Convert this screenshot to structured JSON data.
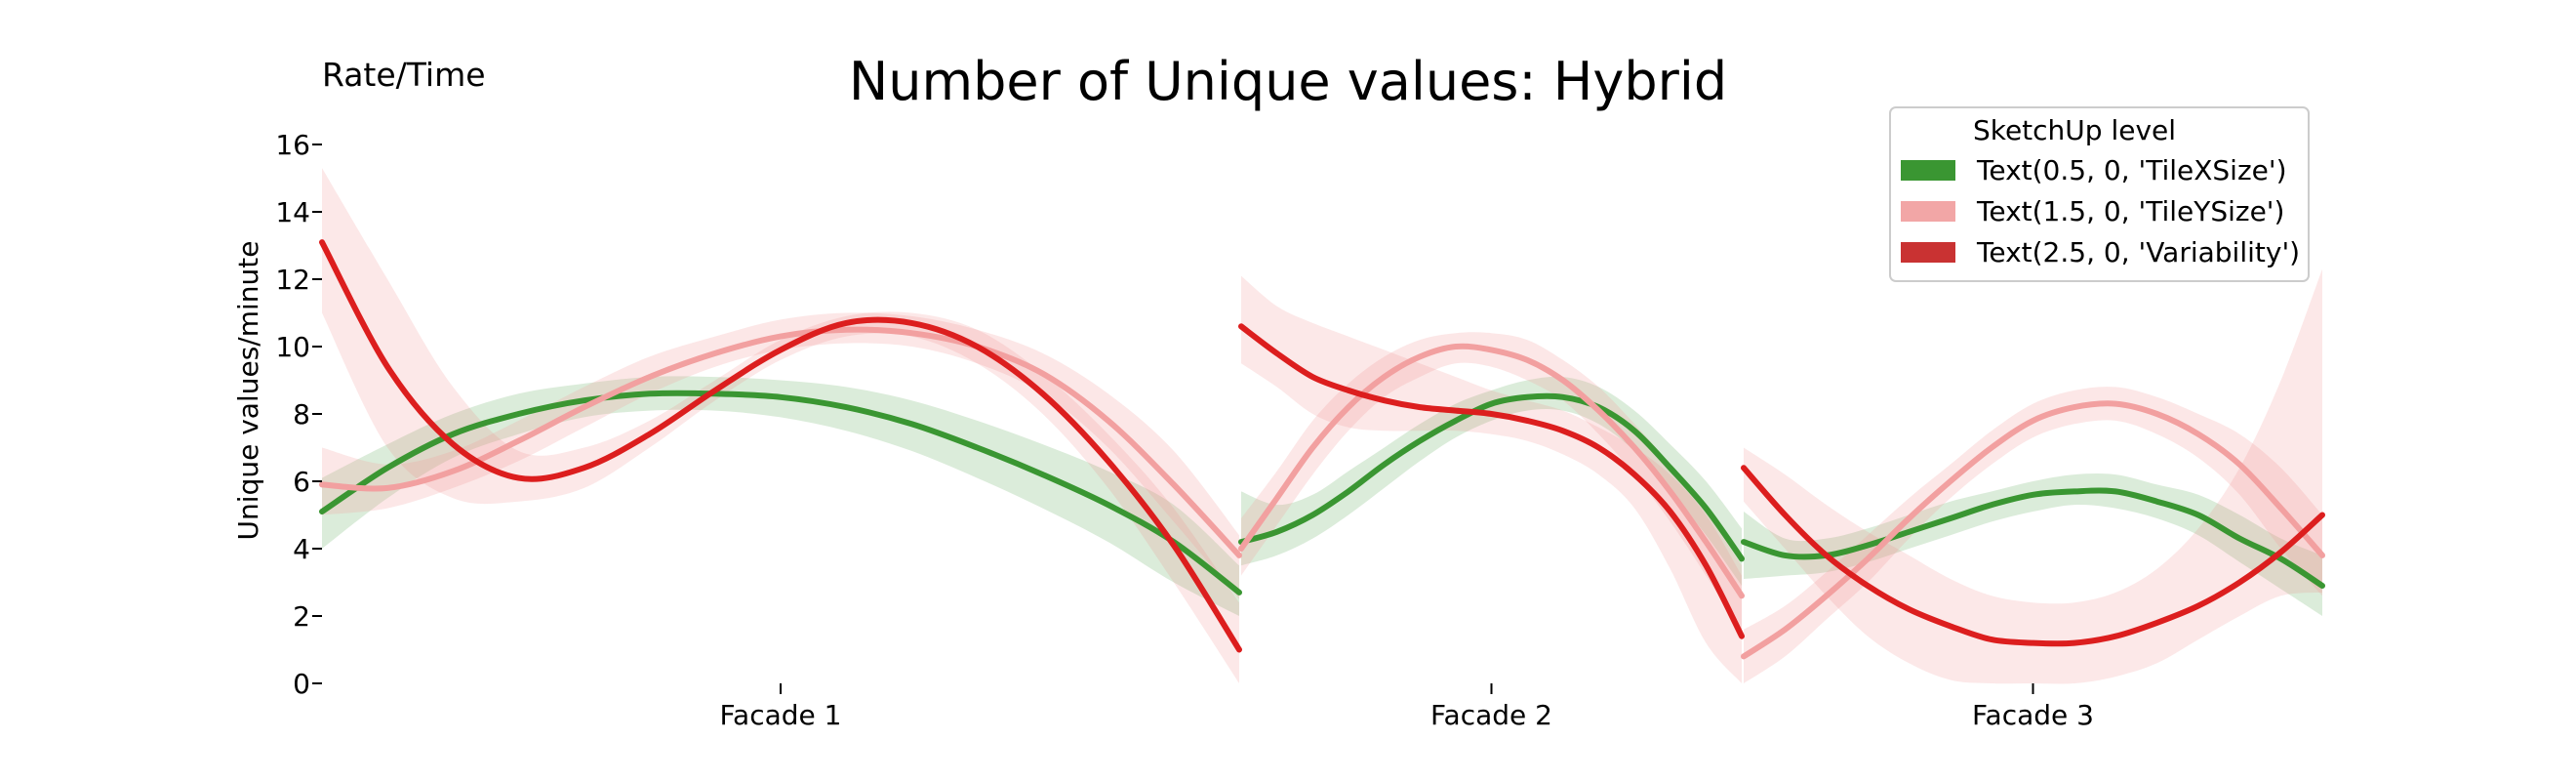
{
  "chart_data": {
    "type": "line",
    "title": "Number of Unique values: Hybrid",
    "corner_label": "Rate/Time",
    "ylabel": "Unique values/minute",
    "xlabel": "",
    "ylim": [
      0,
      16
    ],
    "yticks": [
      0,
      2,
      4,
      6,
      8,
      10,
      12,
      14,
      16
    ],
    "grid": false,
    "legend": {
      "title": "SketchUp level",
      "placement": "top-right",
      "entries": [
        {
          "label": "Text(0.5, 0, 'TileXSize')",
          "color": "#3a9632"
        },
        {
          "label": "Text(1.5, 0, 'TileYSize')",
          "color": "#f2a6a6"
        },
        {
          "label": "Text(2.5, 0, 'Variability')",
          "color": "#c93232"
        }
      ]
    },
    "panels": [
      {
        "label": "Facade 1",
        "series": [
          {
            "name": "Text(0.5, 0, 'TileXSize')",
            "color": "#3a9632",
            "band_color": "#3a9632",
            "values": [
              5.1,
              6.4,
              7.4,
              8.0,
              8.4,
              8.6,
              8.6,
              8.5,
              8.2,
              7.7,
              7.0,
              6.2,
              5.3,
              4.2,
              2.7
            ],
            "lower": [
              4.0,
              5.5,
              6.7,
              7.4,
              7.9,
              8.1,
              8.1,
              7.9,
              7.5,
              6.9,
              6.1,
              5.2,
              4.2,
              3.0,
              2.0
            ],
            "upper": [
              6.1,
              7.1,
              8.0,
              8.6,
              8.9,
              9.1,
              9.1,
              9.0,
              8.8,
              8.4,
              7.8,
              7.1,
              6.3,
              5.3,
              3.5
            ]
          },
          {
            "name": "Text(1.5, 0, 'TileYSize')",
            "color": "#f2a0a0",
            "band_color": "#f2a0a0",
            "values": [
              5.9,
              5.8,
              6.3,
              7.2,
              8.2,
              9.1,
              9.8,
              10.3,
              10.5,
              10.4,
              10.0,
              9.2,
              7.8,
              5.9,
              3.8
            ],
            "lower": [
              5.0,
              5.2,
              5.8,
              6.6,
              7.6,
              8.6,
              9.4,
              9.9,
              10.1,
              10.0,
              9.5,
              8.6,
              7.0,
              4.8,
              2.5
            ],
            "upper": [
              7.0,
              6.5,
              6.9,
              7.8,
              8.8,
              9.7,
              10.3,
              10.8,
              11.0,
              10.9,
              10.5,
              9.8,
              8.6,
              6.9,
              4.4
            ]
          },
          {
            "name": "Text(2.5, 0, 'Variability')",
            "color": "#dc1e1e",
            "band_color": "#f08080",
            "values": [
              13.1,
              9.4,
              7.1,
              6.1,
              6.4,
              7.4,
              8.7,
              9.9,
              10.7,
              10.7,
              10.0,
              8.6,
              6.6,
              4.1,
              1.0
            ],
            "lower": [
              11.0,
              7.0,
              5.5,
              5.4,
              5.8,
              7.0,
              8.4,
              9.6,
              10.3,
              10.3,
              9.5,
              8.0,
              5.8,
              3.0,
              0.0
            ],
            "upper": [
              15.3,
              12.0,
              8.8,
              6.9,
              7.0,
              7.8,
              9.0,
              10.2,
              10.9,
              11.0,
              10.5,
              9.2,
              7.4,
              5.2,
              2.4
            ]
          }
        ]
      },
      {
        "label": "Facade 2",
        "series": [
          {
            "name": "Text(0.5, 0, 'TileXSize')",
            "color": "#3a9632",
            "band_color": "#3a9632",
            "values": [
              4.2,
              4.5,
              5.0,
              5.7,
              6.5,
              7.2,
              7.8,
              8.3,
              8.5,
              8.5,
              8.2,
              7.5,
              6.4,
              5.2,
              3.7
            ],
            "lower": [
              3.5,
              3.8,
              4.3,
              5.0,
              5.8,
              6.6,
              7.3,
              7.8,
              8.1,
              8.1,
              7.7,
              6.9,
              5.7,
              4.4,
              2.9
            ],
            "upper": [
              5.7,
              5.3,
              5.6,
              6.3,
              7.0,
              7.7,
              8.3,
              8.7,
              9.0,
              9.1,
              8.8,
              8.1,
              7.1,
              6.0,
              4.6
            ]
          },
          {
            "name": "Text(1.5, 0, 'TileYSize')",
            "color": "#f2a0a0",
            "band_color": "#f2a0a0",
            "values": [
              4.0,
              5.5,
              7.0,
              8.2,
              9.1,
              9.7,
              10.0,
              9.9,
              9.6,
              9.0,
              8.1,
              7.0,
              5.7,
              4.2,
              2.6
            ],
            "lower": [
              3.2,
              4.7,
              6.2,
              7.5,
              8.5,
              9.1,
              9.5,
              9.4,
              9.0,
              8.4,
              7.4,
              6.2,
              4.8,
              3.2,
              1.5
            ],
            "upper": [
              4.9,
              6.3,
              7.8,
              8.9,
              9.7,
              10.2,
              10.4,
              10.4,
              10.2,
              9.6,
              8.8,
              7.7,
              6.5,
              5.1,
              3.5
            ]
          },
          {
            "name": "Text(2.5, 0, 'Variability')",
            "color": "#dc1e1e",
            "band_color": "#f08080",
            "values": [
              10.6,
              9.8,
              9.1,
              8.7,
              8.4,
              8.2,
              8.1,
              8.0,
              7.8,
              7.5,
              7.0,
              6.2,
              5.1,
              3.5,
              1.4
            ],
            "lower": [
              9.5,
              8.8,
              8.0,
              7.6,
              7.5,
              7.5,
              7.5,
              7.4,
              7.2,
              6.8,
              6.2,
              5.2,
              3.4,
              1.2,
              0.0
            ],
            "upper": [
              12.1,
              11.2,
              10.7,
              10.3,
              9.9,
              9.5,
              9.1,
              8.7,
              8.4,
              8.1,
              7.6,
              7.0,
              6.2,
              5.0,
              3.2
            ]
          }
        ]
      },
      {
        "label": "Facade 3",
        "series": [
          {
            "name": "Text(0.5, 0, 'TileXSize')",
            "color": "#3a9632",
            "band_color": "#3a9632",
            "values": [
              4.2,
              3.8,
              3.8,
              4.1,
              4.5,
              4.9,
              5.3,
              5.6,
              5.7,
              5.7,
              5.4,
              5.0,
              4.3,
              3.7,
              2.9
            ],
            "lower": [
              3.1,
              3.2,
              3.3,
              3.6,
              4.0,
              4.4,
              4.8,
              5.1,
              5.3,
              5.2,
              4.9,
              4.4,
              3.6,
              2.8,
              2.0
            ],
            "upper": [
              5.1,
              4.3,
              4.3,
              4.6,
              5.0,
              5.4,
              5.7,
              6.0,
              6.2,
              6.2,
              5.9,
              5.6,
              5.0,
              4.3,
              3.8
            ]
          },
          {
            "name": "Text(1.5, 0, 'TileYSize')",
            "color": "#f2a0a0",
            "band_color": "#f2a0a0",
            "values": [
              0.8,
              1.6,
              2.6,
              3.7,
              4.9,
              6.0,
              7.0,
              7.8,
              8.2,
              8.3,
              8.0,
              7.4,
              6.5,
              5.2,
              3.8
            ],
            "lower": [
              0.0,
              0.8,
              1.9,
              3.0,
              4.3,
              5.5,
              6.5,
              7.3,
              7.7,
              7.8,
              7.4,
              6.7,
              5.6,
              4.0,
              2.6
            ],
            "upper": [
              1.6,
              2.3,
              3.3,
              4.4,
              5.5,
              6.5,
              7.5,
              8.3,
              8.7,
              8.8,
              8.5,
              8.0,
              7.4,
              6.4,
              5.0
            ]
          },
          {
            "name": "Text(2.5, 0, 'Variability')",
            "color": "#dc1e1e",
            "band_color": "#f08080",
            "values": [
              6.4,
              5.0,
              3.8,
              2.9,
              2.2,
              1.7,
              1.3,
              1.2,
              1.2,
              1.4,
              1.8,
              2.3,
              3.0,
              3.9,
              5.0
            ],
            "lower": [
              5.4,
              4.0,
              2.6,
              1.4,
              0.6,
              0.1,
              0.0,
              0.0,
              0.0,
              0.2,
              0.6,
              1.3,
              2.0,
              2.6,
              2.7
            ],
            "upper": [
              7.0,
              6.2,
              5.3,
              4.5,
              3.8,
              3.1,
              2.6,
              2.4,
              2.4,
              2.7,
              3.4,
              4.6,
              6.4,
              9.0,
              12.3
            ]
          }
        ]
      }
    ]
  }
}
